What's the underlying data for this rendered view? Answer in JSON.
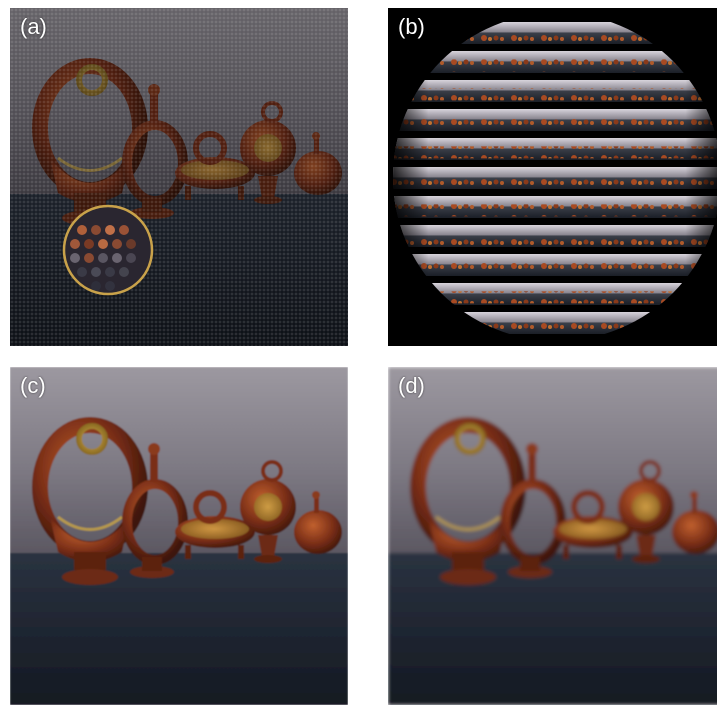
{
  "panels": [
    {
      "label": "(a)"
    },
    {
      "label": "(b)"
    },
    {
      "label": "(c)"
    },
    {
      "label": "(d)"
    }
  ],
  "colors": {
    "wall": "#8a8690",
    "table": "#1f2631",
    "figurine": "#7a2e17",
    "figurine_highlight": "#b0552a",
    "gold_ring": "#c9a545",
    "inset_border": "#c9a24a",
    "background_b": "#000000"
  }
}
